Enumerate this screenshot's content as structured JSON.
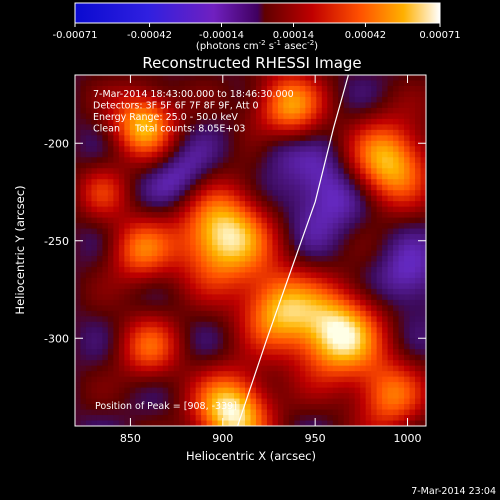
{
  "chart_data": {
    "type": "heatmap",
    "title": "Reconstructed RHESSI Image",
    "xlabel": "Heliocentric X (arcsec)",
    "ylabel": "Heliocentric Y (arcsec)",
    "xlim": [
      820,
      1010
    ],
    "ylim": [
      -345,
      -165
    ],
    "x_ticks": [
      850,
      900,
      950,
      1000
    ],
    "y_ticks": [
      -200,
      -250,
      -300
    ],
    "colorbar": {
      "min": -0.00071,
      "max": 0.00071,
      "tick_values": [
        -0.00071,
        -0.00042,
        -0.00014,
        0.00014,
        0.00042,
        0.00071
      ],
      "tick_labels": [
        "-0.00071",
        "-0.00042",
        "-0.00014",
        "0.00014",
        "0.00042",
        "0.00071"
      ],
      "unit_label": "(photons cm",
      "unit_exp1": "-2",
      "unit_mid": " s",
      "unit_exp2": "-1",
      "unit_mid2": " asec",
      "unit_exp3": "-2",
      "unit_close": ")"
    },
    "annotations": [
      "7-Mar-2014 18:43:00.000 to 18:46:30.000",
      "Detectors: 3F 5F 6F 7F 8F 9F, Att 0",
      "Energy Range: 25.0 - 50.0 keV",
      "Clean     Total counts: 8.05E+03"
    ],
    "peak_label": "Position of Peak = [",
    "peak_value": "908, -339",
    "peak_close": "]",
    "limb_points": [
      [
        908,
        -345
      ],
      [
        924,
        -300
      ],
      [
        937,
        -265
      ],
      [
        950,
        -230
      ],
      [
        960,
        -192
      ],
      [
        968,
        -165
      ]
    ],
    "sources": [
      {
        "x": 900,
        "y": -248,
        "amp": 1.0,
        "s": 17
      },
      {
        "x": 962,
        "y": -298,
        "amp": 1.0,
        "s": 16
      },
      {
        "x": 905,
        "y": -338,
        "amp": 1.0,
        "s": 14
      },
      {
        "x": 990,
        "y": -210,
        "amp": 0.85,
        "s": 15
      },
      {
        "x": 857,
        "y": -190,
        "amp": 0.8,
        "s": 12
      },
      {
        "x": 935,
        "y": -182,
        "amp": 0.75,
        "s": 13
      },
      {
        "x": 930,
        "y": -285,
        "amp": 0.75,
        "s": 14
      },
      {
        "x": 855,
        "y": -255,
        "amp": 0.55,
        "s": 12
      },
      {
        "x": 860,
        "y": -305,
        "amp": 0.5,
        "s": 12
      },
      {
        "x": 990,
        "y": -330,
        "amp": 0.6,
        "s": 13
      },
      {
        "x": 835,
        "y": -225,
        "amp": 0.35,
        "s": 10
      },
      {
        "x": 955,
        "y": -225,
        "amp": -0.35,
        "s": 16
      },
      {
        "x": 878,
        "y": -218,
        "amp": -0.3,
        "s": 12
      },
      {
        "x": 1000,
        "y": -270,
        "amp": -0.3,
        "s": 12
      },
      {
        "x": 930,
        "y": -200,
        "amp": -0.25,
        "s": 10
      }
    ]
  },
  "footer_timestamp": "7-Mar-2014 23:04"
}
